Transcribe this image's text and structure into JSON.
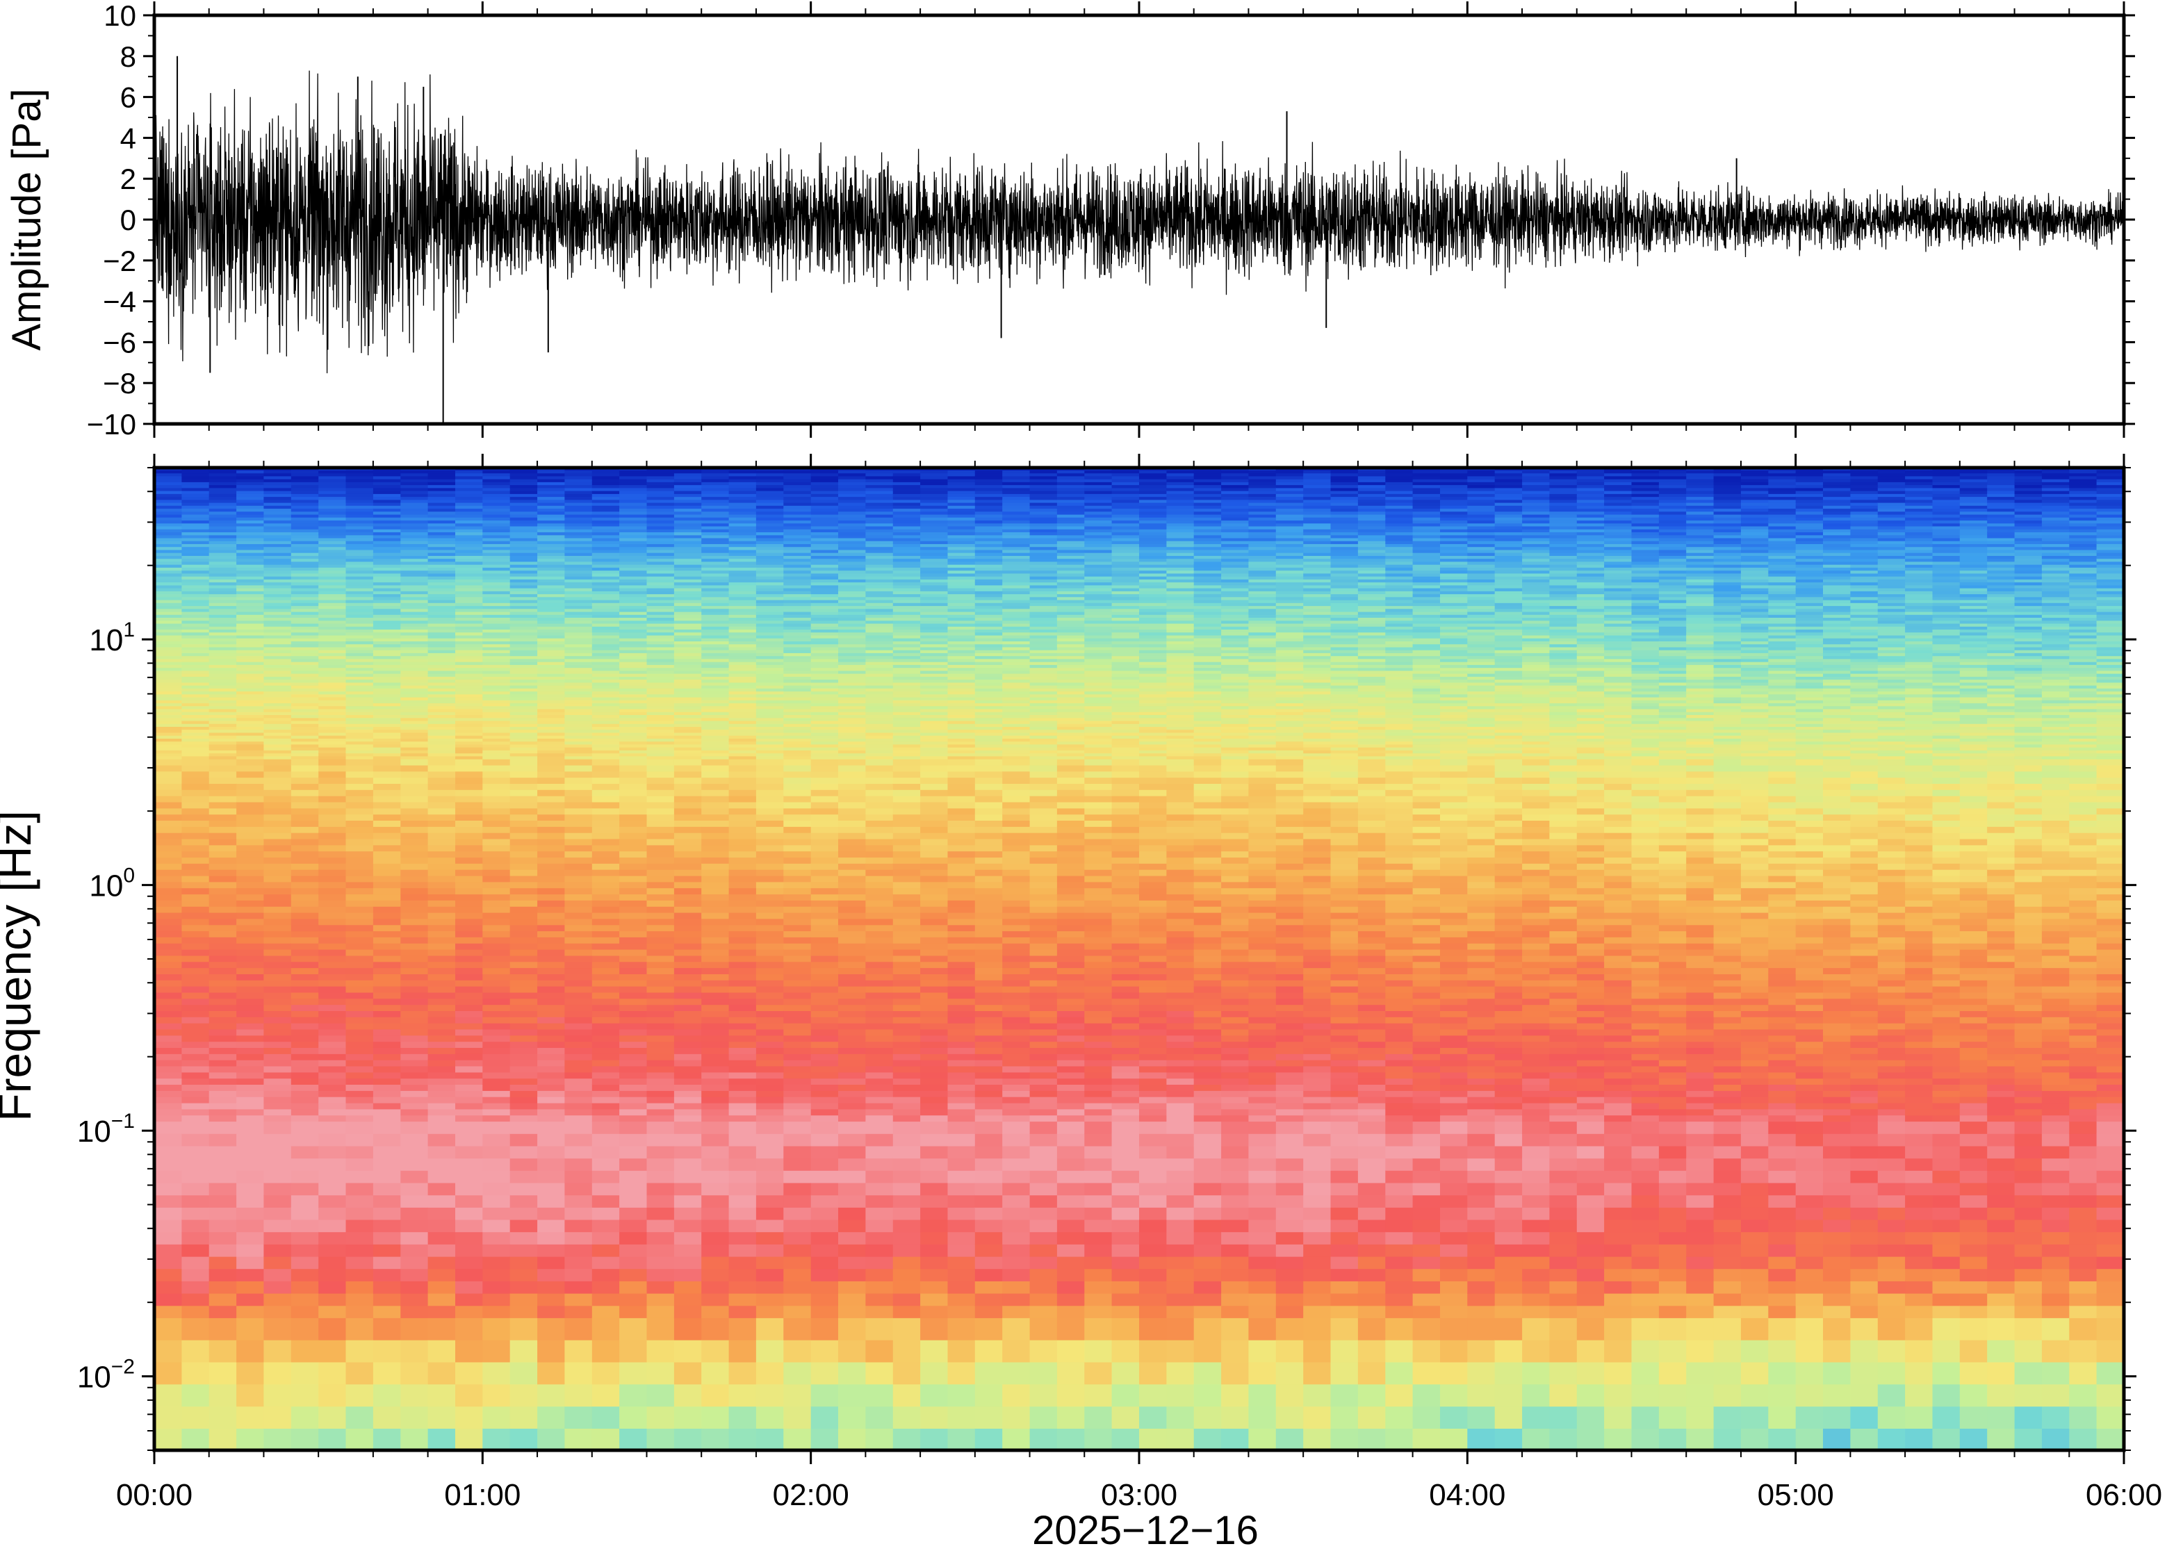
{
  "chart_data": [
    {
      "type": "line",
      "panel": "waveform",
      "ylabel": "Amplitude [Pa]",
      "ylim": [
        -10,
        10
      ],
      "yticks": [
        -10,
        -8,
        -6,
        -4,
        -2,
        0,
        2,
        4,
        6,
        8,
        10
      ],
      "ytick_labels": [
        "−10",
        "−8",
        "−6",
        "−4",
        "−2",
        "0",
        "2",
        "4",
        "6",
        "8",
        "10"
      ],
      "xlim_hours": [
        0,
        6
      ],
      "envelope": {
        "x_hours": [
          0.0,
          0.25,
          0.5,
          0.75,
          0.9,
          1.0,
          1.5,
          2.0,
          2.5,
          3.0,
          3.5,
          4.0,
          4.5,
          5.0,
          5.5,
          6.0
        ],
        "amplitude": [
          4.5,
          4.5,
          5.0,
          5.3,
          4.5,
          2.5,
          2.3,
          2.6,
          2.5,
          2.4,
          2.6,
          2.2,
          1.6,
          1.2,
          1.1,
          1.0
        ]
      },
      "peaks": [
        {
          "x_hours": 0.07,
          "y": 8.0
        },
        {
          "x_hours": 0.17,
          "y": -7.5
        },
        {
          "x_hours": 0.62,
          "y": 7.0
        },
        {
          "x_hours": 0.82,
          "y": 6.5
        },
        {
          "x_hours": 0.88,
          "y": -10.0
        },
        {
          "x_hours": 1.2,
          "y": -6.5
        },
        {
          "x_hours": 2.58,
          "y": -5.8
        },
        {
          "x_hours": 3.45,
          "y": 5.3
        },
        {
          "x_hours": 3.57,
          "y": -5.3
        },
        {
          "x_hours": 4.82,
          "y": 3.0
        }
      ],
      "color": "#000000",
      "grid": false
    },
    {
      "type": "heatmap",
      "panel": "spectrogram",
      "ylabel": "Frequency [Hz]",
      "yscale": "log",
      "ylim": [
        0.005,
        50
      ],
      "yticks": [
        0.01,
        0.1,
        1,
        10
      ],
      "ytick_labels": [
        {
          "base": "10",
          "exp": "−2"
        },
        {
          "base": "10",
          "exp": "−1"
        },
        {
          "base": "10",
          "exp": "0"
        },
        {
          "base": "10",
          "exp": "1"
        }
      ],
      "xlim_hours": [
        0,
        6
      ],
      "xticks_hours": [
        0,
        1,
        2,
        3,
        4,
        5,
        6
      ],
      "xtick_labels": [
        "00:00",
        "01:00",
        "02:00",
        "03:00",
        "04:00",
        "05:00",
        "06:00"
      ],
      "xlabel": "2025−12−16",
      "colormap": [
        "#0a1fb4",
        "#1e5ae6",
        "#3ca0ee",
        "#78dcd2",
        "#c8f096",
        "#f5e678",
        "#f7b455",
        "#f7834a",
        "#f45a5a",
        "#f4a0a8"
      ],
      "power_profile": {
        "log10_frequency": [
          1.7,
          1.5,
          1.3,
          1.0,
          0.7,
          0.3,
          0.0,
          -0.4,
          -0.8,
          -1.0,
          -1.2,
          -1.5,
          -1.7,
          -1.9,
          -2.1,
          -2.3
        ],
        "color_index": [
          0.0,
          1.3,
          2.5,
          3.5,
          4.6,
          5.5,
          6.3,
          7.3,
          8.1,
          8.9,
          8.8,
          8.1,
          6.9,
          5.4,
          4.3,
          3.6
        ]
      },
      "time_trend": {
        "x_hours": [
          0,
          1,
          2,
          3,
          4,
          5,
          6
        ],
        "color_shift": [
          0.4,
          0.2,
          0.0,
          0.1,
          -0.1,
          -0.5,
          -0.6
        ]
      }
    }
  ]
}
